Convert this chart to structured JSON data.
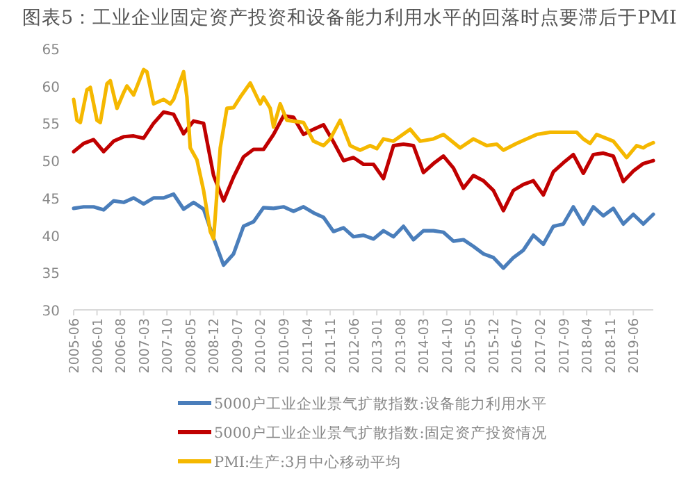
{
  "chart_data": {
    "type": "line",
    "title": "图表5：工业企业固定资产投资和设备能力利用水平的回落时点要滞后于PMI",
    "xlim": [
      "2005-06",
      "2019-12"
    ],
    "xticks": [
      "2005-06",
      "2006-01",
      "2006-08",
      "2007-03",
      "2007-10",
      "2008-05",
      "2008-12",
      "2009-07",
      "2010-02",
      "2010-09",
      "2011-04",
      "2011-11",
      "2012-06",
      "2013-01",
      "2013-08",
      "2014-03",
      "2014-10",
      "2015-05",
      "2015-12",
      "2016-07",
      "2017-02",
      "2017-09",
      "2018-04",
      "2018-11",
      "2019-06"
    ],
    "ylim": [
      30,
      65
    ],
    "yticks": [
      30,
      35,
      40,
      45,
      50,
      55,
      60,
      65
    ],
    "grid": false,
    "legend": "bottom",
    "marker": "none",
    "line_style": "solid",
    "series": [
      {
        "name": "5000户工业企业景气扩散指数:设备能力利用水平",
        "color": "#4a7ebb",
        "x": [
          "2005-06",
          "2005-09",
          "2005-12",
          "2006-03",
          "2006-06",
          "2006-09",
          "2006-12",
          "2007-03",
          "2007-06",
          "2007-09",
          "2007-12",
          "2008-03",
          "2008-06",
          "2008-09",
          "2008-12",
          "2009-03",
          "2009-06",
          "2009-09",
          "2009-12",
          "2010-03",
          "2010-06",
          "2010-09",
          "2010-12",
          "2011-03",
          "2011-06",
          "2011-09",
          "2011-12",
          "2012-03",
          "2012-06",
          "2012-09",
          "2012-12",
          "2013-03",
          "2013-06",
          "2013-09",
          "2013-12",
          "2014-03",
          "2014-06",
          "2014-09",
          "2014-12",
          "2015-03",
          "2015-06",
          "2015-09",
          "2015-12",
          "2016-03",
          "2016-06",
          "2016-09",
          "2016-12",
          "2017-03",
          "2017-06",
          "2017-09",
          "2017-12",
          "2018-03",
          "2018-06",
          "2018-09",
          "2018-12",
          "2019-03",
          "2019-06",
          "2019-09",
          "2019-12"
        ],
        "values": [
          43.6,
          43.8,
          43.8,
          43.4,
          44.6,
          44.4,
          45.0,
          44.2,
          45.0,
          45.0,
          45.5,
          43.5,
          44.4,
          43.5,
          39.6,
          36,
          37.5,
          41.2,
          41.8,
          43.7,
          43.6,
          43.8,
          43.2,
          43.8,
          43.0,
          42.4,
          40.5,
          41.0,
          39.8,
          40.0,
          39.5,
          40.6,
          39.8,
          41.2,
          39.4,
          40.6,
          40.6,
          40.4,
          39.2,
          39.4,
          38.5,
          37.5,
          37.0,
          35.6,
          37.0,
          38.0,
          40.0,
          38.8,
          41.2,
          41.5,
          43.8,
          41.5,
          43.8,
          42.6,
          43.6,
          41.5,
          42.8,
          41.5,
          42.8
        ]
      },
      {
        "name": "5000户工业企业景气扩散指数:固定资产投资情况",
        "color": "#c00000",
        "x": [
          "2005-06",
          "2005-09",
          "2005-12",
          "2006-03",
          "2006-06",
          "2006-09",
          "2006-12",
          "2007-03",
          "2007-06",
          "2007-09",
          "2007-12",
          "2008-03",
          "2008-06",
          "2008-09",
          "2008-12",
          "2009-03",
          "2009-06",
          "2009-09",
          "2009-12",
          "2010-03",
          "2010-06",
          "2010-09",
          "2010-12",
          "2011-03",
          "2011-06",
          "2011-09",
          "2011-12",
          "2012-03",
          "2012-06",
          "2012-09",
          "2012-12",
          "2013-03",
          "2013-06",
          "2013-09",
          "2013-12",
          "2014-03",
          "2014-06",
          "2014-09",
          "2014-12",
          "2015-03",
          "2015-06",
          "2015-09",
          "2015-12",
          "2016-03",
          "2016-06",
          "2016-09",
          "2016-12",
          "2017-03",
          "2017-06",
          "2017-09",
          "2017-12",
          "2018-03",
          "2018-06",
          "2018-09",
          "2018-12",
          "2019-03",
          "2019-06",
          "2019-09",
          "2019-12"
        ],
        "values": [
          51.2,
          52.3,
          52.8,
          51.2,
          52.6,
          53.2,
          53.3,
          53.0,
          55.0,
          56.5,
          56.2,
          53.6,
          55.3,
          55.0,
          48.0,
          44.6,
          47.8,
          50.5,
          51.5,
          51.5,
          53.5,
          56.0,
          55.8,
          53.5,
          54.2,
          54.8,
          52.5,
          50.0,
          50.4,
          49.5,
          49.5,
          47.6,
          52.0,
          52.2,
          52.0,
          48.4,
          49.6,
          50.6,
          49.0,
          46.3,
          48.0,
          47.3,
          46.0,
          43.3,
          46.0,
          46.8,
          47.3,
          45.4,
          48.5,
          49.7,
          50.8,
          48.3,
          50.8,
          51.0,
          50.6,
          47.2,
          48.6,
          49.6,
          50.0
        ]
      },
      {
        "name": "PMI:生产:3月中心移动平均",
        "color": "#f5b800",
        "x": [
          "2005-06",
          "2005-07",
          "2005-08",
          "2005-10",
          "2005-11",
          "2006-01",
          "2006-02",
          "2006-04",
          "2006-05",
          "2006-07",
          "2006-09",
          "2006-10",
          "2006-12",
          "2007-03",
          "2007-04",
          "2007-06",
          "2007-09",
          "2007-11",
          "2007-12",
          "2008-03",
          "2008-04",
          "2008-05",
          "2008-07",
          "2008-09",
          "2008-11",
          "2008-12",
          "2009-02",
          "2009-04",
          "2009-06",
          "2009-08",
          "2009-11",
          "2010-02",
          "2010-03",
          "2010-05",
          "2010-06",
          "2010-08",
          "2010-10",
          "2011-03",
          "2011-06",
          "2011-09",
          "2011-11",
          "2012-02",
          "2012-05",
          "2012-08",
          "2012-11",
          "2013-01",
          "2013-03",
          "2013-06",
          "2013-11",
          "2014-02",
          "2014-06",
          "2014-09",
          "2015-02",
          "2015-06",
          "2015-10",
          "2016-01",
          "2016-03",
          "2016-07",
          "2017-01",
          "2017-05",
          "2017-09",
          "2018-01",
          "2018-03",
          "2018-05",
          "2018-07",
          "2018-12",
          "2019-04",
          "2019-07",
          "2019-09",
          "2019-10",
          "2019-12"
        ],
        "values": [
          58.2,
          55.4,
          55.1,
          59.5,
          59.8,
          55.4,
          55.1,
          60.3,
          60.7,
          57.0,
          59.1,
          60.0,
          58.8,
          62.2,
          61.9,
          57.6,
          58.2,
          57.6,
          58.2,
          61.9,
          58.5,
          51.7,
          50.1,
          46.0,
          40.5,
          39.5,
          51.7,
          57.0,
          57.1,
          58.5,
          60.4,
          57.6,
          58.5,
          57.0,
          54.5,
          57.6,
          55.4,
          55.1,
          52.6,
          52.0,
          52.9,
          55.4,
          52.0,
          51.4,
          52.0,
          51.6,
          52.9,
          52.6,
          54.2,
          52.6,
          52.9,
          53.5,
          51.7,
          52.9,
          52.0,
          52.2,
          51.4,
          52.3,
          53.5,
          53.8,
          53.8,
          53.8,
          52.9,
          52.3,
          53.5,
          52.6,
          50.4,
          52.0,
          51.7,
          52.0,
          52.4
        ]
      }
    ]
  }
}
